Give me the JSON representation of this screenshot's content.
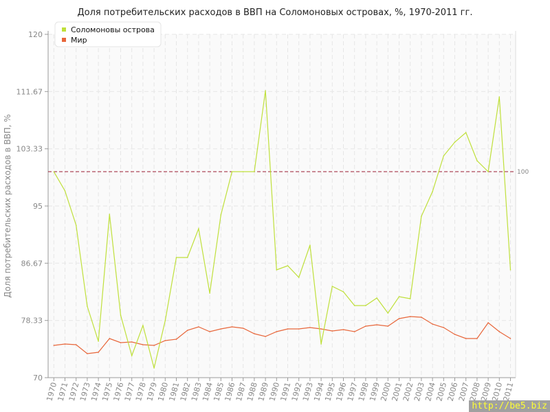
{
  "chart_data": {
    "type": "line",
    "title": "Доля потребительских расходов в ВВП на Соломоновых островах, %, 1970-2011 гг.",
    "xlabel": "",
    "ylabel": "Доля потребительских расходов в ВВП, %",
    "ylim": [
      70,
      120
    ],
    "yticks": [
      "70",
      "78.33",
      "86.67",
      "95",
      "103.33",
      "111.67",
      "120"
    ],
    "grid": true,
    "legend_position": "top-left",
    "reference_line": {
      "value": 100,
      "label": "100",
      "color": "#9b1b30"
    },
    "x": [
      1970,
      1971,
      1972,
      1973,
      1974,
      1975,
      1976,
      1977,
      1978,
      1979,
      1980,
      1981,
      1982,
      1983,
      1984,
      1985,
      1986,
      1987,
      1988,
      1989,
      1990,
      1991,
      1992,
      1993,
      1994,
      1995,
      1996,
      1997,
      1998,
      1999,
      2000,
      2001,
      2002,
      2003,
      2004,
      2005,
      2006,
      2007,
      2008,
      2009,
      2010,
      2011
    ],
    "series": [
      {
        "name": "Соломоновы острова",
        "color": "#bfe03a",
        "values": [
          100,
          97.2,
          92.2,
          80.4,
          75.3,
          93.8,
          79.1,
          73.2,
          77.6,
          71.4,
          78.3,
          87.5,
          87.5,
          91.7,
          82.3,
          93.7,
          100,
          100,
          100,
          111.8,
          85.7,
          86.3,
          84.6,
          89.3,
          74.9,
          83.3,
          82.5,
          80.5,
          80.5,
          81.6,
          79.4,
          81.8,
          81.5,
          93.5,
          97.1,
          102.3,
          104.3,
          105.7,
          101.6,
          100,
          110.9,
          85.7
        ]
      },
      {
        "name": "Мир",
        "color": "#e8663a",
        "values": [
          74.7,
          74.9,
          74.8,
          73.5,
          73.7,
          75.7,
          75.1,
          75.2,
          74.8,
          74.7,
          75.4,
          75.6,
          76.9,
          77.4,
          76.7,
          77.1,
          77.4,
          77.2,
          76.4,
          76.0,
          76.7,
          77.1,
          77.1,
          77.3,
          77.1,
          76.8,
          77.0,
          76.7,
          77.5,
          77.7,
          77.5,
          78.6,
          78.9,
          78.8,
          77.8,
          77.3,
          76.3,
          75.7,
          75.7,
          78.0,
          76.7,
          75.7
        ]
      }
    ]
  },
  "watermark": "http://be5.biz"
}
